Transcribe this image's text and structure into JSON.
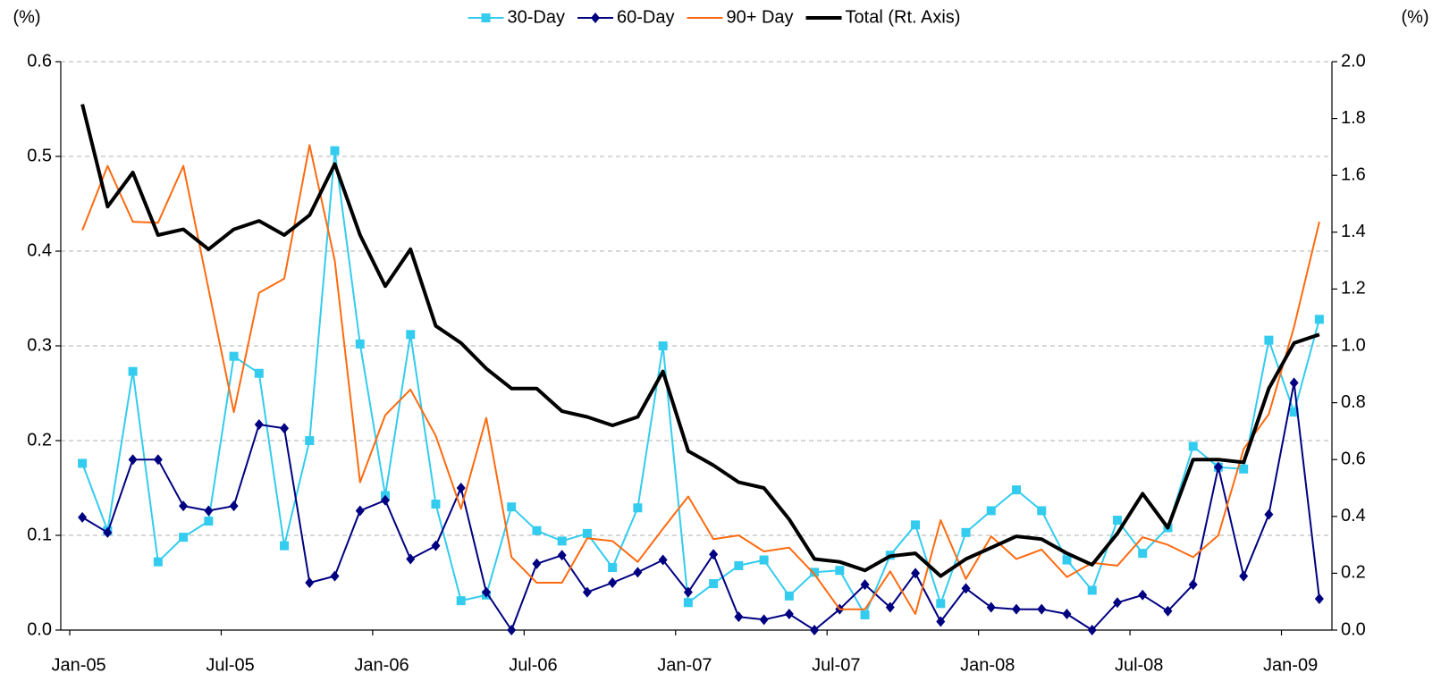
{
  "chart_data": {
    "type": "line",
    "y_unit_left": "(%)",
    "y_unit_right": "(%)",
    "categories": [
      "Jan-05",
      null,
      null,
      null,
      null,
      null,
      "Jul-05",
      null,
      null,
      null,
      null,
      null,
      "Jan-06",
      null,
      null,
      null,
      null,
      null,
      "Jul-06",
      null,
      null,
      null,
      null,
      null,
      "Jan-07",
      null,
      null,
      null,
      null,
      null,
      "Jul-07",
      null,
      null,
      null,
      null,
      null,
      "Jan-08",
      null,
      null,
      null,
      null,
      null,
      "Jul-08",
      null,
      null,
      null,
      null,
      null,
      "Jan-09",
      null
    ],
    "series": [
      {
        "name": "30-Day",
        "color": "#33ccee",
        "marker": "square",
        "width": 2,
        "values": [
          0.176,
          0.105,
          0.273,
          0.072,
          0.098,
          0.115,
          0.289,
          0.271,
          0.089,
          0.2,
          0.506,
          0.302,
          0.142,
          0.312,
          0.133,
          0.031,
          0.037,
          0.13,
          0.105,
          0.094,
          0.102,
          0.066,
          0.129,
          0.3,
          0.029,
          0.049,
          0.068,
          0.074,
          0.036,
          0.061,
          0.063,
          0.016,
          0.079,
          0.111,
          0.028,
          0.103,
          0.126,
          0.148,
          0.126,
          0.074,
          0.042,
          0.116,
          0.081,
          0.108,
          0.194,
          0.172,
          0.17,
          0.306,
          0.23,
          0.328
        ]
      },
      {
        "name": "60-Day",
        "color": "#000080",
        "marker": "diamond",
        "width": 2,
        "values": [
          0.119,
          0.103,
          0.18,
          0.18,
          0.131,
          0.126,
          0.131,
          0.217,
          0.213,
          0.05,
          0.057,
          0.126,
          0.137,
          0.075,
          0.089,
          0.15,
          0.04,
          0.0,
          0.07,
          0.079,
          0.04,
          0.05,
          0.061,
          0.074,
          0.04,
          0.08,
          0.014,
          0.011,
          0.017,
          0.0,
          0.022,
          0.048,
          0.024,
          0.06,
          0.009,
          0.044,
          0.024,
          0.022,
          0.022,
          0.017,
          0.0,
          0.029,
          0.037,
          0.02,
          0.048,
          0.172,
          0.057,
          0.122,
          0.261,
          0.033
        ]
      },
      {
        "name": "90+ Day",
        "color": "#ff6a10",
        "marker": "none",
        "width": 2,
        "values": [
          0.422,
          0.49,
          0.431,
          0.43,
          0.49,
          0.36,
          0.23,
          0.356,
          0.371,
          0.512,
          0.39,
          0.156,
          0.227,
          0.254,
          0.205,
          0.128,
          0.224,
          0.077,
          0.05,
          0.05,
          0.097,
          0.094,
          0.072,
          0.107,
          0.141,
          0.096,
          0.1,
          0.083,
          0.087,
          0.059,
          0.022,
          0.022,
          0.062,
          0.017,
          0.116,
          0.054,
          0.099,
          0.075,
          0.085,
          0.056,
          0.071,
          0.068,
          0.098,
          0.09,
          0.077,
          0.1,
          0.191,
          0.228,
          0.32,
          0.431
        ]
      },
      {
        "name": "Total (Rt. Axis)",
        "color": "#000000",
        "marker": "none",
        "width": 4,
        "axis": "y2",
        "values": [
          1.85,
          1.49,
          1.61,
          1.39,
          1.41,
          1.34,
          1.41,
          1.44,
          1.39,
          1.46,
          1.64,
          1.39,
          1.21,
          1.34,
          1.07,
          1.01,
          0.92,
          0.85,
          0.85,
          0.77,
          0.75,
          0.72,
          0.75,
          0.91,
          0.63,
          0.58,
          0.52,
          0.5,
          0.39,
          0.25,
          0.24,
          0.21,
          0.26,
          0.27,
          0.19,
          0.25,
          0.29,
          0.33,
          0.32,
          0.27,
          0.23,
          0.34,
          0.48,
          0.36,
          0.6,
          0.6,
          0.59,
          0.85,
          1.01,
          1.04
        ]
      }
    ],
    "ylim": [
      0,
      0.6
    ],
    "yticks": [
      {
        "value": 0,
        "label": "0.0"
      },
      0.1,
      0.2,
      0.3,
      0.4,
      0.5,
      0.6
    ],
    "y2lim": [
      0,
      2.0
    ],
    "y2ticks": [
      {
        "value": 0,
        "label": "0.0"
      },
      0.2,
      0.4,
      0.6,
      0.8,
      {
        "value": 1,
        "label": "1.0"
      },
      1.2,
      1.4,
      1.6,
      1.8,
      {
        "value": 2,
        "label": "2.0"
      }
    ],
    "grid": true,
    "legend": "top"
  }
}
